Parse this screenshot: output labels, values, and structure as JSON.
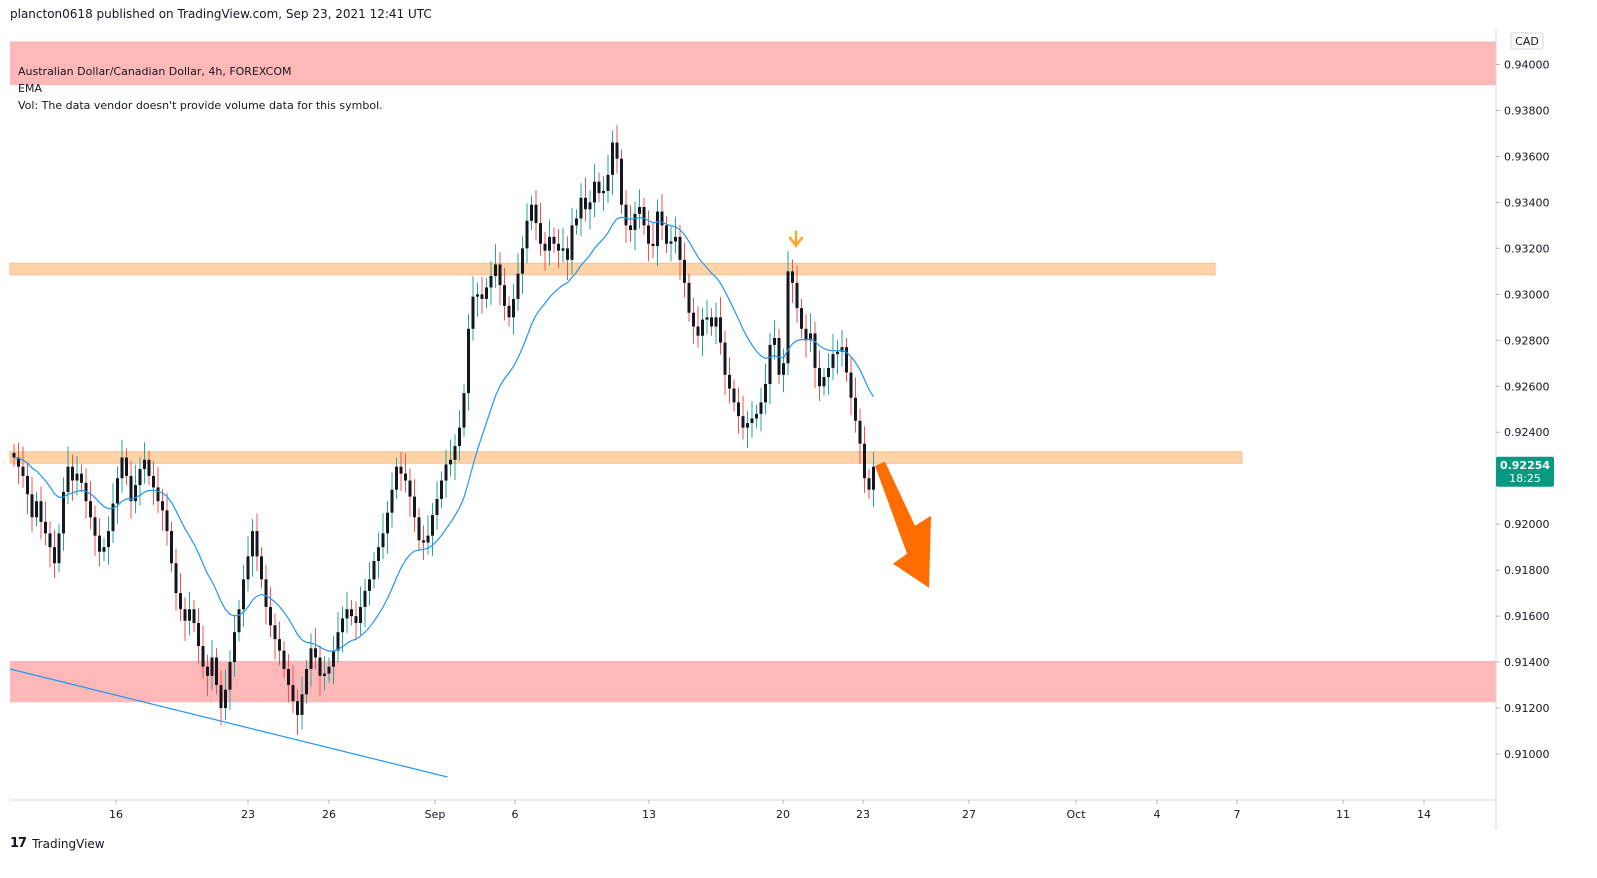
{
  "header": {
    "publish_line": "plancton0618 published on TradingView.com, Sep 23, 2021 12:41 UTC"
  },
  "legend": {
    "symbol_line": "Australian Dollar/Canadian Dollar, 4h, FOREXCOM",
    "indicator_line": "EMA",
    "volume_line": "Vol: The data vendor doesn't provide volume data for this symbol."
  },
  "price_axis": {
    "currency": "CAD",
    "current_price": "0.92254",
    "countdown": "18:25",
    "tick_labels": [
      "0.94000",
      "0.93800",
      "0.93600",
      "0.93400",
      "0.93200",
      "0.93000",
      "0.92800",
      "0.92600",
      "0.92400",
      "0.92000",
      "0.91800",
      "0.91600",
      "0.91400",
      "0.91200",
      "0.91000"
    ]
  },
  "footer": {
    "logo_text": "TradingView"
  },
  "colors": {
    "up": "#26a69a",
    "down": "#ef5350",
    "candle_body": "#131722",
    "ema": "#2196f3",
    "zone_orange": "#ffcc99",
    "zone_red": "#ffa6a6",
    "arrow": "#ff6d00",
    "price_badge": "#089981"
  },
  "chart_data": {
    "type": "candlestick",
    "title": "Australian Dollar/Canadian Dollar, 4h, FOREXCOM",
    "ylabel": "CAD",
    "ylim": [
      0.908,
      0.9415
    ],
    "x_tick_labels": [
      "16",
      "23",
      "26",
      "Sep",
      "6",
      "13",
      "20",
      "23",
      "27",
      "Oct",
      "4",
      "7",
      "11",
      "14"
    ],
    "y_tick_values": [
      0.94,
      0.938,
      0.936,
      0.934,
      0.932,
      0.93,
      0.928,
      0.926,
      0.924,
      0.92,
      0.918,
      0.916,
      0.914,
      0.912,
      0.91
    ],
    "close_path": [
      [
        0.9229,
        0.9225,
        0.9221,
        0.9213,
        0.9203,
        0.921,
        0.9201,
        0.9196,
        0.919,
        0.9183,
        0.9196,
        0.9214,
        0.9225,
        0.9219,
        0.9222,
        0.9218,
        0.921,
        0.9203,
        0.9195,
        0.9188,
        0.919,
        0.9197,
        0.9209,
        0.922,
        0.9229,
        0.9221,
        0.921,
        0.9217,
        0.9224,
        0.9228,
        0.9221,
        0.9216,
        0.921,
        0.9206,
        0.9197,
        0.9183,
        0.917,
        0.9163,
        0.9158,
        0.9163,
        0.9157,
        0.9147,
        0.9138,
        0.9134,
        0.9142,
        0.913,
        0.912,
        0.9128,
        0.914,
        0.9153,
        0.9163,
        0.9176,
        0.9186,
        0.9197,
        0.9186,
        0.9176,
        0.9164,
        0.9156,
        0.915,
        0.9145,
        0.9137,
        0.913,
        0.9123,
        0.9117,
        0.9126,
        0.9137,
        0.9146,
        0.9142,
        0.9134,
        0.9135,
        0.9138,
        0.9145,
        0.9153,
        0.9159,
        0.9163,
        0.916,
        0.9157,
        0.9164,
        0.9171,
        0.9176,
        0.9184,
        0.919,
        0.9196,
        0.9205,
        0.9215,
        0.9225,
        0.9222,
        0.9219,
        0.9212,
        0.9203,
        0.9193,
        0.9192,
        0.9195,
        0.9204,
        0.9211,
        0.9219,
        0.9226,
        0.9228,
        0.9234,
        0.9242,
        0.9257,
        0.9285,
        0.9299,
        0.93,
        0.9298,
        0.9303,
        0.9308,
        0.9313,
        0.9304,
        0.9295,
        0.929,
        0.9298,
        0.9309,
        0.932,
        0.9332,
        0.9339,
        0.9331,
        0.9322,
        0.9319,
        0.9325,
        0.9322,
        0.9319,
        0.932,
        0.9315,
        0.933,
        0.9333,
        0.9342,
        0.9337,
        0.934,
        0.9349,
        0.9344,
        0.9345,
        0.9352,
        0.9366,
        0.9359,
        0.9339,
        0.933,
        0.9328,
        0.9335,
        0.9338,
        0.933,
        0.9322,
        0.9321,
        0.9336,
        0.933,
        0.9322,
        0.9323,
        0.9325,
        0.9315,
        0.9305,
        0.9292,
        0.9286,
        0.9282,
        0.9289,
        0.929,
        0.9286,
        0.929,
        0.9279,
        0.9265,
        0.9259,
        0.9253,
        0.9247,
        0.9242,
        0.9244,
        0.9246,
        0.9248,
        0.9253,
        0.9261,
        0.9278,
        0.9281,
        0.9265,
        0.927,
        0.931,
        0.9305,
        0.9294,
        0.9285,
        0.928,
        0.9283,
        0.9268,
        0.926,
        0.9264,
        0.9268,
        0.9274,
        0.9275,
        0.9277,
        0.9266,
        0.9255,
        0.9245,
        0.9235,
        0.922,
        0.9215,
        0.9225
      ]
    ],
    "ema_shown": true,
    "resistance_zones": [
      {
        "low": 0.93085,
        "high": 0.93135
      },
      {
        "low": 0.92265,
        "high": 0.92315
      }
    ],
    "support_zones": [
      {
        "low": 0.91225,
        "high": 0.91405
      },
      {
        "low": 0.9391,
        "high": 0.941
      }
    ],
    "trendline": [
      [
        0,
        0.9137
      ],
      [
        63,
        0.909
      ]
    ],
    "annotations": [
      "down arrow marker at resistance retest",
      "large down arrow projecting lower"
    ],
    "last_price": 0.92254
  }
}
